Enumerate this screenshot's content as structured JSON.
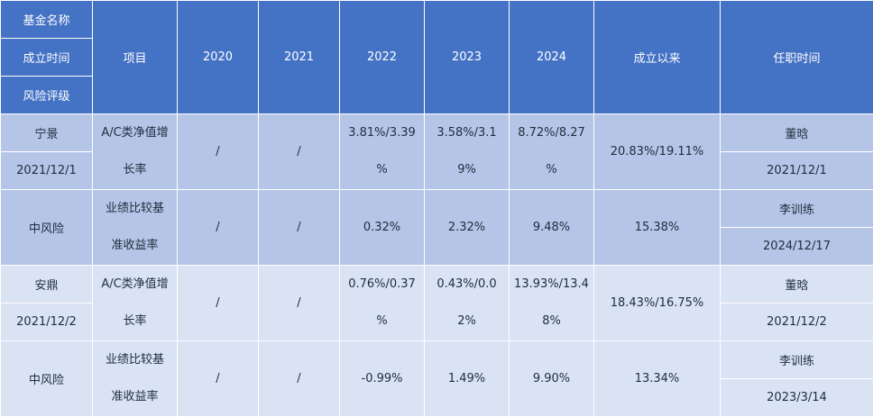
{
  "header": {
    "fund_name": "基金名称",
    "inception_date": "成立时间",
    "risk_rating": "风险评级",
    "item": "项目",
    "years": [
      "2020",
      "2021",
      "2022",
      "2023",
      "2024"
    ],
    "since_inception": "成立以来",
    "tenure": "任职时间"
  },
  "funds": [
    {
      "name": "宁景",
      "date": "2021/12/1",
      "risk": "中风险",
      "rows": [
        {
          "item_lines": [
            "A/C类净值增",
            "长率"
          ],
          "y2020": "/",
          "y2021": "/",
          "y2022_lines": [
            "3.81%/3.39",
            "%"
          ],
          "y2023_lines": [
            "3.58%/3.1",
            "9%"
          ],
          "y2024_lines": [
            "8.72%/8.27",
            "%"
          ],
          "since": "20.83%/19.11%",
          "manager": "董晗",
          "tenure": "2021/12/1"
        },
        {
          "item_lines": [
            "业绩比较基",
            "准收益率"
          ],
          "y2020": "/",
          "y2021": "/",
          "y2022": "0.32%",
          "y2023": "2.32%",
          "y2024": "9.48%",
          "since": "15.38%",
          "manager": "李训练",
          "tenure": "2024/12/17"
        }
      ]
    },
    {
      "name": "安鼎",
      "date": "2021/12/2",
      "risk": "中风险",
      "rows": [
        {
          "item_lines": [
            "A/C类净值增",
            "长率"
          ],
          "y2020": "/",
          "y2021": "/",
          "y2022_lines": [
            "0.76%/0.37",
            "%"
          ],
          "y2023_lines": [
            "0.43%/0.0",
            "2%"
          ],
          "y2024_lines": [
            "13.93%/13.4",
            "8%"
          ],
          "since": "18.43%/16.75%",
          "manager": "董晗",
          "tenure": "2021/12/2"
        },
        {
          "item_lines": [
            "业绩比较基",
            "准收益率"
          ],
          "y2020": "/",
          "y2021": "/",
          "y2022": "-0.99%",
          "y2023": "1.49%",
          "y2024": "9.90%",
          "since": "13.34%",
          "manager": "李训练",
          "tenure": "2023/3/14"
        }
      ]
    }
  ]
}
